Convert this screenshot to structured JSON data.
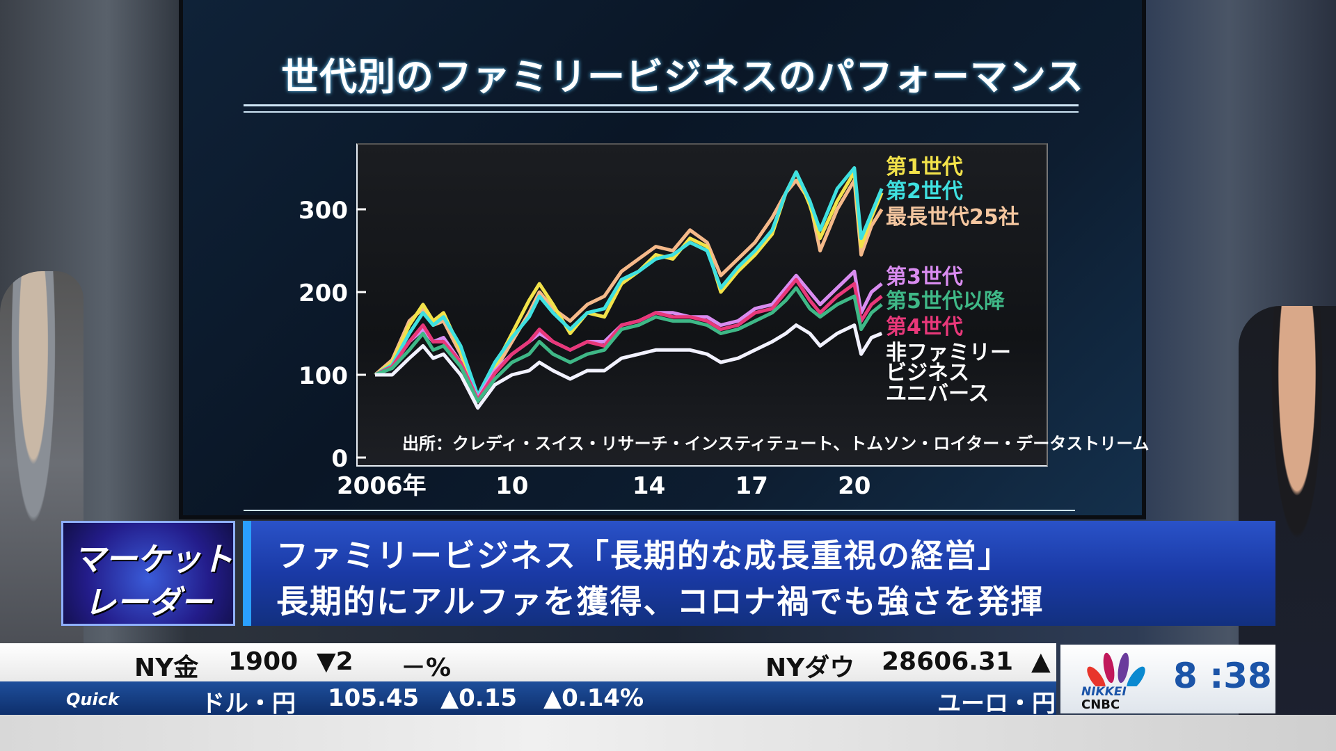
{
  "chart_data": {
    "type": "line",
    "title": "世代別のファミリービジネスのパフォーマンス",
    "source": "出所：クレディ・スイス・リサーチ・インスティテュート、トムソン・ロイター・データストリーム",
    "xlim": [
      2006,
      2021
    ],
    "ylim": [
      0,
      380
    ],
    "y_ticks": [
      "0",
      "100",
      "200",
      "300"
    ],
    "y_tick_values": [
      0,
      100,
      200,
      300
    ],
    "x_ticks": [
      "2006年",
      "10",
      "14",
      "17",
      "20"
    ],
    "x_tick_values": [
      2006,
      2010,
      2014,
      2017,
      2020
    ],
    "grid": false,
    "legend_placement": "right",
    "x": [
      2006.0,
      2006.5,
      2007.0,
      2007.4,
      2007.7,
      2008.0,
      2008.5,
      2009.0,
      2009.5,
      2010.0,
      2010.5,
      2010.8,
      2011.2,
      2011.7,
      2012.2,
      2012.7,
      2013.2,
      2013.7,
      2014.2,
      2014.7,
      2015.2,
      2015.7,
      2016.1,
      2016.6,
      2017.1,
      2017.6,
      2018.0,
      2018.3,
      2018.7,
      2019.0,
      2019.5,
      2020.0,
      2020.2,
      2020.5,
      2020.8
    ],
    "series": [
      {
        "name": "最長世代25社",
        "color": "#f5b98a",
        "values": [
          100,
          118,
          165,
          180,
          160,
          165,
          125,
          68,
          105,
          140,
          175,
          200,
          180,
          165,
          185,
          195,
          225,
          240,
          255,
          250,
          275,
          260,
          220,
          240,
          260,
          290,
          320,
          335,
          310,
          250,
          300,
          335,
          245,
          280,
          300
        ]
      },
      {
        "name": "第1世代",
        "color": "#f2e24a",
        "values": [
          100,
          115,
          160,
          185,
          165,
          175,
          130,
          70,
          110,
          150,
          190,
          210,
          185,
          150,
          175,
          170,
          210,
          225,
          245,
          240,
          265,
          255,
          200,
          225,
          245,
          270,
          320,
          345,
          305,
          265,
          310,
          345,
          255,
          290,
          320
        ]
      },
      {
        "name": "第2世代",
        "color": "#3fe0e0",
        "values": [
          100,
          112,
          150,
          175,
          160,
          170,
          135,
          75,
          115,
          145,
          170,
          195,
          175,
          155,
          175,
          180,
          215,
          225,
          240,
          245,
          260,
          250,
          205,
          230,
          250,
          275,
          320,
          345,
          310,
          275,
          325,
          350,
          265,
          295,
          325
        ]
      },
      {
        "name": "第3世代",
        "color": "#d98cf0",
        "values": [
          100,
          110,
          140,
          155,
          140,
          145,
          115,
          72,
          105,
          125,
          140,
          150,
          140,
          130,
          140,
          140,
          160,
          165,
          175,
          175,
          170,
          170,
          160,
          165,
          180,
          185,
          205,
          220,
          200,
          185,
          205,
          225,
          175,
          200,
          210
        ]
      },
      {
        "name": "第4世代",
        "color": "#e8387a",
        "values": [
          100,
          110,
          140,
          160,
          140,
          140,
          115,
          70,
          102,
          125,
          140,
          155,
          140,
          130,
          140,
          135,
          160,
          165,
          175,
          170,
          170,
          165,
          155,
          160,
          175,
          180,
          200,
          215,
          190,
          175,
          195,
          210,
          165,
          185,
          195
        ]
      },
      {
        "name": "第5世代以降",
        "color": "#3fb887",
        "values": [
          100,
          108,
          130,
          150,
          130,
          135,
          110,
          68,
          95,
          115,
          125,
          140,
          125,
          115,
          125,
          130,
          155,
          160,
          170,
          165,
          165,
          160,
          150,
          155,
          165,
          175,
          190,
          205,
          180,
          170,
          185,
          195,
          155,
          175,
          185
        ]
      },
      {
        "name": "非ファミリービジネスユニバース",
        "color": "#f2f2ff",
        "values": [
          100,
          100,
          120,
          135,
          120,
          125,
          100,
          60,
          88,
          100,
          105,
          115,
          105,
          95,
          105,
          105,
          120,
          125,
          130,
          130,
          130,
          125,
          115,
          120,
          130,
          140,
          150,
          160,
          150,
          135,
          150,
          160,
          125,
          145,
          150
        ]
      }
    ],
    "legend": [
      {
        "text": "第1世代",
        "color": "#f2e24a"
      },
      {
        "text": "第2世代",
        "color": "#3fe0e0"
      },
      {
        "text": "最長世代25社",
        "color": "#f5c7a0"
      },
      {
        "text": "第3世代",
        "color": "#d98cf0"
      },
      {
        "text": "第5世代以降",
        "color": "#3fb887"
      },
      {
        "text": "第4世代",
        "color": "#e8387a"
      },
      {
        "text": "非ファミリー",
        "color": "#ffffff"
      },
      {
        "text": "ビジネス",
        "color": "#ffffff"
      },
      {
        "text": "ユニバース",
        "color": "#ffffff"
      }
    ]
  },
  "banner": {
    "logo_line1": "マーケット",
    "logo_line2": "レーダー",
    "caption_line1": "ファミリービジネス「長期的な成長重視の経営」",
    "caption_line2": "長期的にアルファを獲得、コロナ禍でも強さを発揮"
  },
  "ticker": {
    "top": {
      "label1": "NY金",
      "value1": "1900",
      "change1": "▼2",
      "pct1": "－%",
      "label2": "NYダウ",
      "value2": "28606.31",
      "change2": "▲"
    },
    "bottom": {
      "provider": "Quick",
      "label1": "ドル・円",
      "value1": "105.45",
      "change1": "▲0.15",
      "pct1": "▲0.14%",
      "label2": "ユーロ・円"
    }
  },
  "network": {
    "logo_text1": "NIKKEI",
    "logo_text2": "CNBC",
    "clock": "8 :38"
  },
  "colors": {
    "caption_bg": "#1a3aa6",
    "ticker_bg": "#0e2f6c",
    "up": "#e8102a",
    "down": "#1aa7e0",
    "clock": "#1b54a8"
  }
}
